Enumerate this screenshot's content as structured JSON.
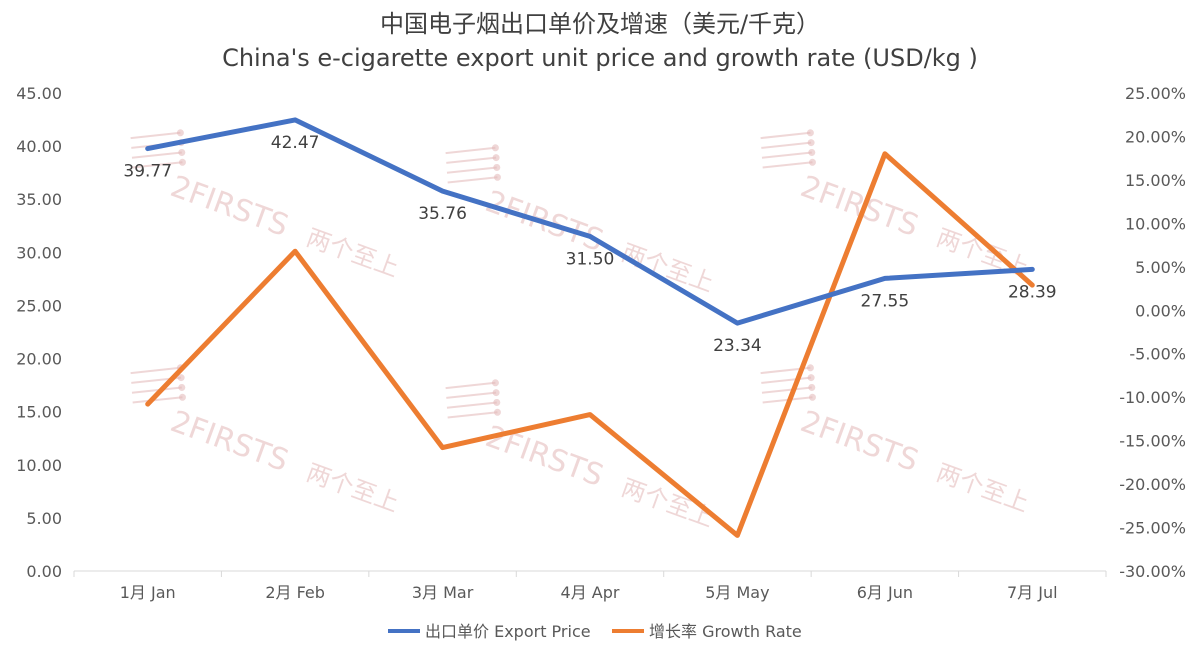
{
  "watermark": {
    "text": "2FIRSTS",
    "text_cn": "两个至上"
  },
  "colors": {
    "price": "#4472C4",
    "growth": "#ED7D31",
    "axis": "#D9D9D9",
    "watermark": "#E2B7B7"
  },
  "chart_data": {
    "type": "line",
    "title": "中国电子烟出口单价及增速（美元/千克）",
    "subtitle": "China's e-cigarette export unit price and growth rate (USD/kg )",
    "categories": [
      "1月 Jan",
      "2月 Feb",
      "3月 Mar",
      "4月 Apr",
      "5月 May",
      "6月 Jun",
      "7月 Jul"
    ],
    "y_left": {
      "ylim": [
        0,
        45
      ],
      "ticks": [
        "0.00",
        "5.00",
        "10.00",
        "15.00",
        "20.00",
        "25.00",
        "30.00",
        "35.00",
        "40.00",
        "45.00"
      ]
    },
    "y_right": {
      "ylim": [
        -30,
        25
      ],
      "ticks": [
        "-30.00%",
        "-25.00%",
        "-20.00%",
        "-15.00%",
        "-10.00%",
        "-5.00%",
        "0.00%",
        "5.00%",
        "10.00%",
        "15.00%",
        "20.00%",
        "25.00%"
      ]
    },
    "series": [
      {
        "name": "出口单价 Export Price",
        "axis": "left",
        "values": [
          39.77,
          42.47,
          35.76,
          31.5,
          23.34,
          27.55,
          28.39
        ],
        "labels": [
          "39.77",
          "42.47",
          "35.76",
          "31.50",
          "23.34",
          "27.55",
          "28.39"
        ]
      },
      {
        "name": "增长率 Growth Rate",
        "axis": "right",
        "values": [
          -10.8,
          6.8,
          -15.8,
          -12.0,
          -25.9,
          18.0,
          2.9
        ]
      }
    ],
    "grid": false,
    "legend": "bottom"
  }
}
